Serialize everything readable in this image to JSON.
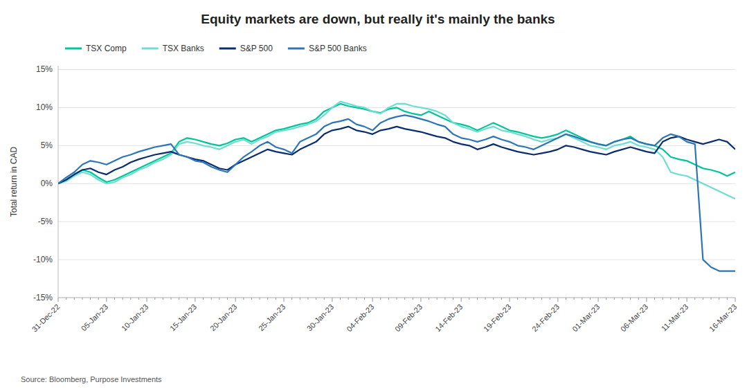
{
  "chart_data": {
    "type": "line",
    "title": "Equity markets are down, but really it's mainly the banks",
    "ylabel": "Total return in CAD",
    "source": "Source: Bloomberg, Purpose Investments",
    "categories": [
      "31-Dec-22",
      null,
      null,
      null,
      null,
      null,
      "05-Jan-23",
      null,
      null,
      null,
      null,
      "10-Jan-23",
      null,
      null,
      null,
      null,
      null,
      "15-Jan-23",
      null,
      null,
      null,
      null,
      "20-Jan-23",
      null,
      null,
      null,
      null,
      null,
      "25-Jan-23",
      null,
      null,
      null,
      null,
      null,
      "30-Jan-23",
      null,
      null,
      null,
      null,
      "04-Feb-23",
      null,
      null,
      null,
      null,
      null,
      "09-Feb-23",
      null,
      null,
      null,
      null,
      "14-Feb-23",
      null,
      null,
      null,
      null,
      null,
      "19-Feb-23",
      null,
      null,
      null,
      null,
      null,
      "24-Feb-23",
      null,
      null,
      null,
      null,
      "01-Mar-23",
      null,
      null,
      null,
      null,
      null,
      "06-Mar-23",
      null,
      null,
      null,
      null,
      "11-Mar-23",
      null,
      null,
      null,
      null,
      null,
      "16-Mar-23"
    ],
    "series": [
      {
        "name": "TSX Comp",
        "color": "#00C49A",
        "values": [
          0.0,
          0.5,
          1.2,
          1.8,
          1.5,
          0.8,
          0.2,
          0.5,
          1.0,
          1.5,
          2.0,
          2.5,
          3.0,
          3.5,
          4.0,
          5.5,
          6.0,
          5.8,
          5.5,
          5.2,
          5.0,
          5.3,
          5.8,
          6.0,
          5.5,
          6.0,
          6.5,
          7.0,
          7.2,
          7.5,
          7.8,
          8.0,
          8.5,
          9.5,
          10.0,
          10.5,
          10.2,
          10.0,
          9.8,
          9.5,
          9.3,
          9.8,
          10.0,
          9.5,
          9.2,
          9.0,
          9.5,
          9.0,
          8.5,
          8.0,
          7.8,
          7.5,
          7.0,
          7.5,
          8.0,
          7.5,
          7.0,
          6.8,
          6.5,
          6.2,
          6.0,
          6.2,
          6.5,
          7.0,
          6.5,
          6.0,
          5.5,
          5.2,
          5.0,
          5.5,
          5.8,
          6.2,
          5.5,
          5.2,
          5.0,
          4.5,
          3.5,
          3.2,
          3.0,
          2.5,
          2.0,
          1.8,
          1.5,
          1.0,
          1.5
        ]
      },
      {
        "name": "TSX Banks",
        "color": "#6DDED0",
        "values": [
          0.0,
          0.3,
          1.0,
          1.5,
          1.2,
          0.5,
          0.0,
          0.2,
          0.8,
          1.2,
          1.8,
          2.2,
          2.8,
          3.2,
          3.8,
          5.2,
          5.5,
          5.3,
          5.0,
          4.8,
          4.5,
          5.0,
          5.5,
          5.8,
          5.2,
          5.8,
          6.2,
          6.8,
          7.0,
          7.2,
          7.5,
          7.8,
          8.2,
          9.0,
          10.0,
          10.8,
          10.5,
          10.2,
          10.0,
          9.5,
          9.2,
          10.0,
          10.5,
          10.5,
          10.2,
          10.0,
          9.8,
          9.5,
          9.0,
          8.0,
          7.5,
          7.2,
          6.8,
          7.2,
          7.5,
          7.0,
          6.8,
          6.5,
          6.2,
          5.8,
          5.5,
          5.8,
          6.0,
          6.5,
          6.0,
          5.5,
          5.0,
          4.8,
          4.5,
          5.0,
          5.2,
          5.5,
          5.0,
          4.8,
          4.5,
          3.5,
          1.5,
          1.2,
          1.0,
          0.5,
          0.0,
          -0.5,
          -1.0,
          -1.5,
          -2.0
        ]
      },
      {
        "name": "S&P 500",
        "color": "#0A2D6E",
        "values": [
          0.0,
          0.5,
          1.2,
          1.8,
          2.0,
          1.5,
          1.2,
          1.8,
          2.2,
          2.8,
          3.2,
          3.5,
          3.8,
          4.0,
          4.2,
          3.8,
          3.5,
          3.2,
          3.0,
          2.5,
          2.0,
          1.8,
          2.5,
          3.0,
          3.5,
          4.0,
          4.5,
          4.2,
          4.0,
          3.8,
          4.5,
          5.0,
          5.5,
          6.5,
          7.0,
          7.2,
          7.5,
          7.0,
          6.8,
          6.5,
          7.0,
          7.2,
          7.5,
          7.2,
          7.0,
          6.8,
          6.5,
          6.2,
          6.0,
          5.5,
          5.2,
          5.0,
          4.5,
          4.8,
          5.2,
          4.8,
          4.5,
          4.2,
          4.0,
          3.8,
          4.0,
          4.2,
          4.5,
          5.0,
          4.8,
          4.5,
          4.2,
          4.0,
          3.8,
          4.2,
          4.5,
          4.8,
          4.5,
          4.2,
          4.0,
          5.5,
          6.0,
          6.2,
          5.8,
          5.5,
          5.2,
          5.5,
          5.8,
          5.5,
          4.5
        ]
      },
      {
        "name": "S&P 500 Banks",
        "color": "#2E75B6",
        "values": [
          0.0,
          0.8,
          1.5,
          2.5,
          3.0,
          2.8,
          2.5,
          3.0,
          3.5,
          3.8,
          4.2,
          4.5,
          4.8,
          5.0,
          5.2,
          3.8,
          3.5,
          3.0,
          2.8,
          2.2,
          1.8,
          1.5,
          2.5,
          3.5,
          4.2,
          5.0,
          5.5,
          4.8,
          4.5,
          4.0,
          5.5,
          6.0,
          6.5,
          7.5,
          8.0,
          8.2,
          8.5,
          7.8,
          7.5,
          7.0,
          8.0,
          8.5,
          8.8,
          9.0,
          8.8,
          8.5,
          8.2,
          7.8,
          7.5,
          6.5,
          6.0,
          5.8,
          5.5,
          5.8,
          6.2,
          5.8,
          5.5,
          5.0,
          4.8,
          4.5,
          5.0,
          5.5,
          6.0,
          6.5,
          6.2,
          5.8,
          5.5,
          5.2,
          5.0,
          5.5,
          5.8,
          6.0,
          5.5,
          5.2,
          5.0,
          6.0,
          6.5,
          6.2,
          5.5,
          5.2,
          -10.0,
          -11.0,
          -11.5,
          -11.5,
          -11.5
        ]
      }
    ],
    "ylim": [
      -15,
      15.5
    ],
    "yticks": [
      {
        "value": -15,
        "label": "-15%"
      },
      {
        "value": -10,
        "label": "-10%"
      },
      {
        "value": -5,
        "label": "-5%"
      },
      {
        "value": 0,
        "label": "0%"
      },
      {
        "value": 5,
        "label": "5%"
      },
      {
        "value": 10,
        "label": "10%"
      },
      {
        "value": 15,
        "label": "15%"
      }
    ],
    "grid": true,
    "legend": "upper left"
  }
}
